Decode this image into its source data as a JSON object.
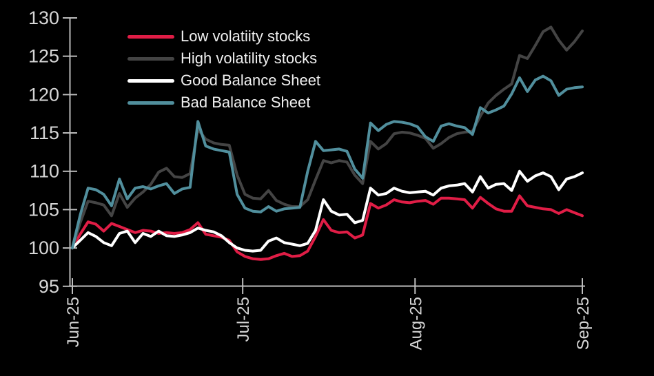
{
  "background_color": "#000000",
  "axis_style": {
    "line_color": "#bdbdbd",
    "tick_color": "#bdbdbd",
    "label_color": "#d6d6d6"
  },
  "chart_data": {
    "type": "line",
    "title": "",
    "xlabel": "",
    "ylabel": "",
    "ylim": [
      95,
      130
    ],
    "grid": false,
    "legend_position": "top-left-inside",
    "y_ticks": [
      "130",
      "125",
      "120",
      "115",
      "110",
      "105",
      "100",
      "95"
    ],
    "y_tick_values": [
      130,
      125,
      120,
      115,
      110,
      105,
      100,
      95
    ],
    "x_ticks": [
      {
        "label": "Jun-25",
        "pos": 0.0
      },
      {
        "label": "Jul-25",
        "pos": 0.334
      },
      {
        "label": "Aug-25",
        "pos": 0.672
      },
      {
        "label": "Sep-25",
        "pos": 1.0
      }
    ],
    "series": [
      {
        "name": "Low volatiity stocks",
        "color": "#e01d46",
        "values": [
          100.0,
          101.8,
          103.4,
          103.1,
          102.2,
          103.2,
          102.8,
          102.4,
          102.0,
          102.3,
          102.2,
          101.9,
          102.0,
          101.9,
          102.0,
          102.4,
          103.3,
          101.8,
          101.6,
          101.4,
          101.0,
          99.5,
          98.9,
          98.6,
          98.5,
          98.6,
          99.0,
          99.3,
          98.9,
          99.0,
          99.6,
          101.5,
          103.7,
          102.3,
          102.0,
          102.1,
          101.3,
          101.7,
          105.8,
          105.2,
          105.6,
          106.3,
          106.0,
          105.9,
          106.1,
          106.2,
          105.7,
          106.5,
          106.5,
          106.4,
          106.3,
          105.2,
          106.6,
          105.8,
          105.1,
          104.8,
          104.8,
          106.8,
          105.5,
          105.3,
          105.1,
          105.0,
          104.5,
          105.0,
          104.6,
          104.2
        ]
      },
      {
        "name": "High volatility stocks",
        "color": "#444444",
        "values": [
          100.0,
          103.3,
          106.1,
          105.9,
          105.6,
          104.2,
          107.1,
          105.3,
          106.5,
          107.3,
          108.3,
          109.9,
          110.4,
          109.3,
          109.2,
          109.7,
          115.5,
          114.2,
          113.7,
          113.5,
          113.4,
          109.5,
          107.0,
          106.5,
          106.4,
          107.5,
          106.2,
          105.7,
          105.4,
          105.4,
          106.3,
          108.9,
          111.4,
          111.1,
          111.4,
          111.2,
          109.5,
          108.4,
          113.9,
          112.9,
          113.6,
          114.9,
          115.1,
          115.0,
          114.7,
          114.3,
          113.0,
          113.6,
          114.4,
          114.9,
          115.1,
          115.2,
          117.2,
          118.9,
          119.9,
          120.7,
          121.4,
          125.1,
          124.7,
          126.4,
          128.2,
          128.8,
          127.1,
          125.8,
          126.9,
          128.3
        ]
      },
      {
        "name": "Good Balance Sheet",
        "color": "#ffffff",
        "values": [
          100.0,
          101.0,
          102.0,
          101.5,
          100.7,
          100.3,
          101.9,
          102.2,
          100.7,
          101.9,
          101.5,
          102.2,
          101.6,
          101.5,
          101.7,
          102.0,
          102.6,
          102.3,
          102.1,
          101.6,
          100.7,
          100.0,
          99.7,
          99.6,
          99.7,
          100.9,
          101.3,
          100.7,
          100.5,
          100.3,
          100.6,
          102.3,
          106.3,
          104.8,
          104.3,
          104.4,
          103.3,
          103.6,
          107.8,
          106.9,
          107.1,
          107.8,
          107.4,
          107.2,
          107.3,
          107.4,
          106.9,
          107.8,
          108.1,
          108.2,
          108.4,
          107.3,
          109.3,
          107.8,
          108.3,
          108.4,
          107.5,
          110.0,
          108.7,
          109.4,
          109.8,
          109.3,
          107.6,
          109.0,
          109.3,
          109.8
        ]
      },
      {
        "name": "Bad Balance Sheet",
        "color": "#518f9d",
        "values": [
          100.0,
          104.3,
          107.8,
          107.6,
          107.0,
          105.5,
          109.0,
          106.4,
          107.8,
          108.0,
          107.7,
          108.1,
          108.4,
          107.1,
          107.7,
          107.9,
          116.5,
          113.3,
          112.9,
          112.7,
          112.5,
          107.0,
          105.2,
          104.8,
          104.7,
          105.4,
          104.8,
          105.1,
          105.2,
          105.3,
          110.0,
          113.9,
          112.7,
          112.8,
          112.9,
          112.6,
          110.3,
          109.1,
          116.3,
          115.3,
          116.1,
          116.5,
          116.4,
          116.2,
          115.8,
          114.5,
          113.9,
          115.9,
          116.2,
          115.9,
          115.7,
          114.8,
          118.3,
          117.6,
          118.0,
          118.5,
          120.1,
          122.2,
          120.4,
          121.9,
          122.4,
          121.8,
          119.9,
          120.7,
          120.9,
          121.0
        ]
      }
    ]
  }
}
